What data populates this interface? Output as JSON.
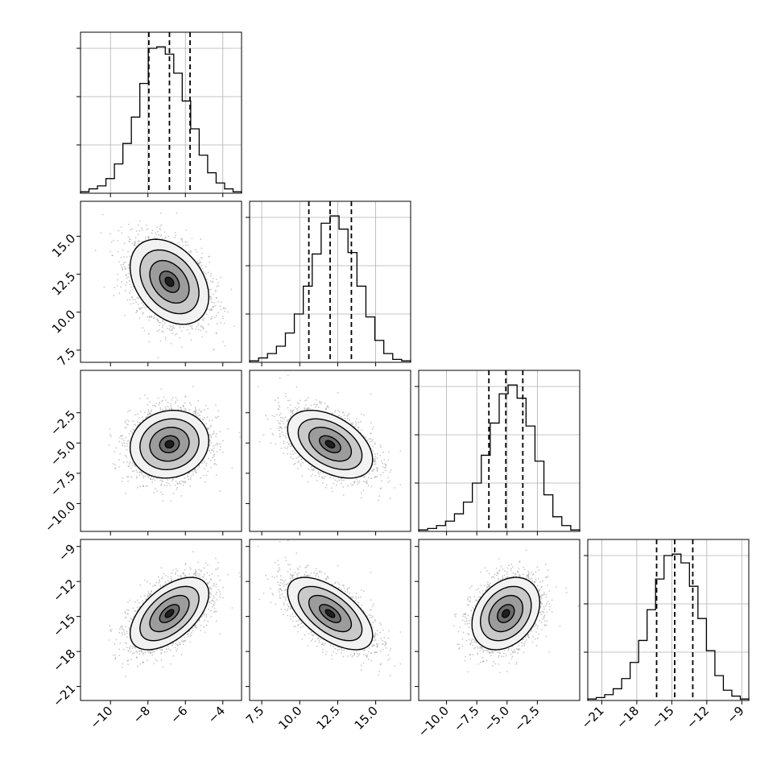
{
  "colors": {
    "line": "#000000",
    "grid": "#b0b0b0",
    "scatter": "#9a9a9a",
    "background": "#ffffff"
  },
  "chart_data": {
    "type": "corner",
    "title": "",
    "grid": true,
    "parameters": [
      {
        "label": "",
        "range": [
          -11.6,
          -3.0
        ],
        "ticks": [
          -10,
          -8,
          -6,
          -4
        ],
        "tick_labels": [
          "−10",
          "−8",
          "−6",
          "−4"
        ],
        "quantiles": [
          -7.95,
          -6.85,
          -5.75
        ],
        "mean": -6.85,
        "std": 1.05,
        "hist_counts": [
          1,
          3,
          5,
          10,
          20,
          34,
          52,
          75,
          99,
          100,
          95,
          82,
          63,
          44,
          26,
          14,
          7,
          3,
          1
        ]
      },
      {
        "label": "",
        "range": [
          6.7,
          17.3
        ],
        "ticks": [
          7.5,
          10.0,
          12.5,
          15.0
        ],
        "tick_labels": [
          "7.5",
          "10.0",
          "12.5",
          "15.0"
        ],
        "quantiles": [
          10.6,
          12.0,
          13.4
        ],
        "mean": 12.0,
        "std": 1.4,
        "hist_counts": [
          1,
          3,
          6,
          11,
          20,
          33,
          52,
          74,
          95,
          100,
          91,
          75,
          52,
          31,
          15,
          6,
          2,
          1
        ]
      },
      {
        "label": "",
        "range": [
          -12.3,
          1.0
        ],
        "ticks": [
          -10.0,
          -7.5,
          -5.0,
          -2.5
        ],
        "tick_labels": [
          "−10.0",
          "−7.5",
          "−5.0",
          "−2.5"
        ],
        "quantiles": [
          -6.5,
          -5.1,
          -3.7
        ],
        "mean": -5.1,
        "std": 1.4,
        "hist_counts": [
          1,
          2,
          4,
          7,
          12,
          20,
          33,
          52,
          74,
          94,
          100,
          91,
          72,
          48,
          25,
          10,
          4,
          1
        ]
      },
      {
        "label": "",
        "range": [
          -22.2,
          -8.4
        ],
        "ticks": [
          -21,
          -18,
          -15,
          -12,
          -9
        ],
        "tick_labels": [
          "−21",
          "−18",
          "−15",
          "−12",
          "−9"
        ],
        "quantiles": [
          -16.3,
          -14.75,
          -13.2
        ],
        "mean": -14.75,
        "std": 1.55,
        "hist_counts": [
          1,
          2,
          4,
          8,
          15,
          26,
          41,
          62,
          83,
          99,
          100,
          94,
          78,
          56,
          34,
          17,
          7,
          3,
          1
        ]
      }
    ],
    "correlations": [
      [
        1.0,
        -0.35,
        0.1,
        0.55
      ],
      [
        -0.35,
        1.0,
        -0.45,
        -0.6
      ],
      [
        0.1,
        -0.45,
        1.0,
        0.3
      ],
      [
        0.55,
        -0.6,
        0.3,
        1.0
      ]
    ],
    "contour_levels_sigma": [
      0.5,
      1.0,
      1.5,
      2.0
    ],
    "samples_per_panel": 2600
  }
}
